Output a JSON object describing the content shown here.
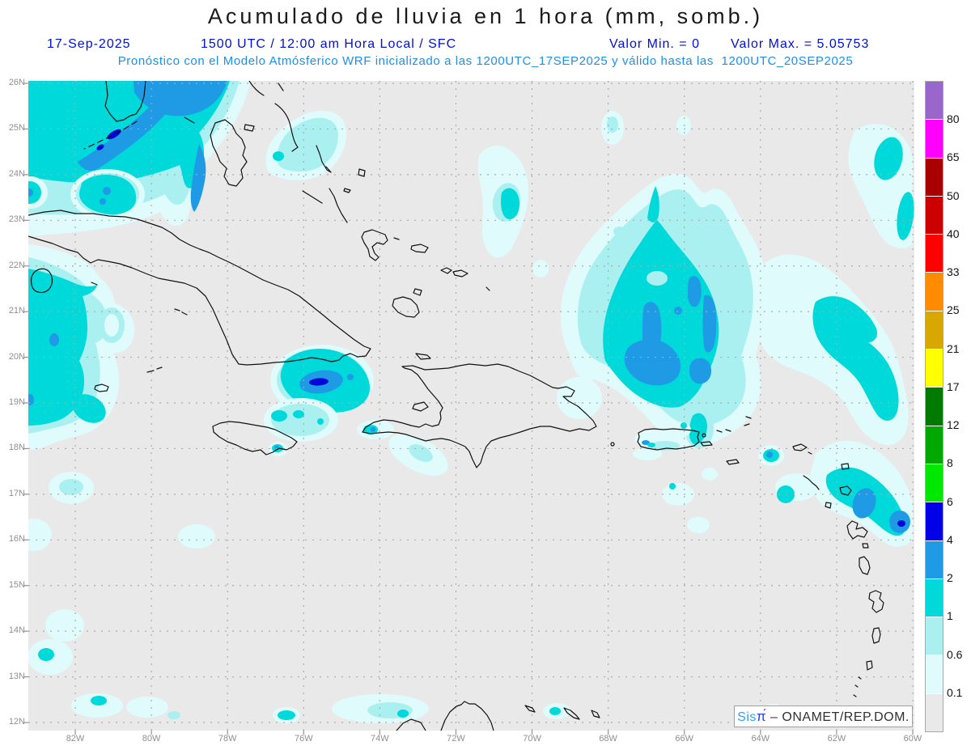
{
  "header": {
    "title": "Acumulado de lluvia en 1 hora (mm, somb.)",
    "date": "17-Sep-2025",
    "time_line": "1500 UTC / 12:00 am Hora Local / SFC",
    "valor_min": "Valor Min. = 0",
    "valor_max": "Valor Max. = 5.05753",
    "model_line": "Pronóstico con el Modelo Atmósferico WRF inicializado a las 1200UTC_17SEP2025 y válido hasta las  1200UTC_20SEP2025"
  },
  "axes": {
    "lat_ticks": [
      "26N",
      "25N",
      "24N",
      "23N",
      "22N",
      "21N",
      "20N",
      "19N",
      "18N",
      "17N",
      "16N",
      "15N",
      "14N",
      "13N",
      "12N"
    ],
    "lon_ticks": [
      "82W",
      "80W",
      "78W",
      "76W",
      "74W",
      "72W",
      "70W",
      "68W",
      "66W",
      "64W",
      "62W",
      "60W"
    ]
  },
  "colorbar": {
    "labels_top_to_bottom": [
      "80",
      "65",
      "50",
      "40",
      "33",
      "25",
      "21",
      "17",
      "12",
      "8",
      "6",
      "4",
      "2",
      "1",
      "0.6",
      "0.1"
    ],
    "colors_top_to_bottom": [
      "#9966cc",
      "#ff00ff",
      "#a80000",
      "#cc0000",
      "#ff0000",
      "#ff8c00",
      "#d9a800",
      "#ffff00",
      "#007a00",
      "#00a800",
      "#00e800",
      "#0000e8",
      "#1e9be4",
      "#00d9d9",
      "#abf0f0",
      "#e0fbfb",
      "#e9e9e9"
    ]
  },
  "attribution": {
    "brand_sis": "Sis",
    "brand_pi": "π́",
    "suffix": " – ONAMET/REP.DOM."
  },
  "colors": {
    "header_blue": "#0010d0",
    "model_blue": "#1e8fe8",
    "map_background": "#e9e9e9",
    "grid_gray": "#ababab",
    "axis_label_gray": "#8f8f8f"
  }
}
